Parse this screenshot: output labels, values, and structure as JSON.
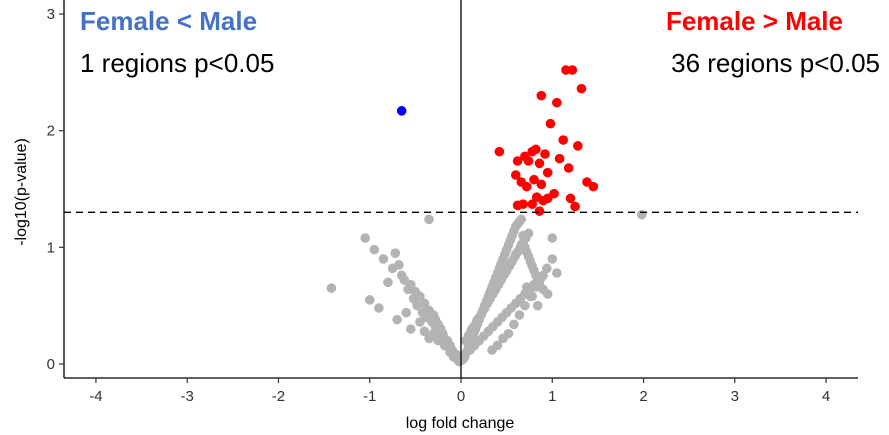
{
  "chart_data": {
    "type": "scatter",
    "title": "",
    "xlabel": "log fold change",
    "ylabel": "-log10(p-value)",
    "xlim": [
      -4.35,
      4.35
    ],
    "ylim": [
      -0.12,
      3.12
    ],
    "x_ticks": [
      -4,
      -3,
      -2,
      -1,
      0,
      1,
      2,
      3,
      4
    ],
    "y_ticks": [
      0,
      1,
      2,
      3
    ],
    "significance_threshold": 1.3,
    "grid": false,
    "colors": {
      "up": "#ff0000",
      "down": "#0000ff",
      "ns": "#b3b3b3",
      "left_title": "#4472c4",
      "right_title": "#ff0000"
    },
    "annotations": {
      "left_title": "Female < Male",
      "left_count": "1 regions p<0.05",
      "right_title": "Female > Male",
      "right_count": "36 regions p<0.05"
    },
    "series": [
      {
        "group": "down",
        "x": [
          -0.65
        ],
        "y": [
          2.17
        ]
      },
      {
        "group": "up",
        "x": [
          1.15,
          1.22,
          1.32,
          0.88,
          1.05,
          0.98,
          1.28,
          1.12,
          0.42,
          0.62,
          0.7,
          0.74,
          0.78,
          0.82,
          0.86,
          0.92,
          0.95,
          1.08,
          1.18,
          0.6,
          0.66,
          0.72,
          0.8,
          0.88,
          0.95,
          1.02,
          1.38,
          1.45,
          1.2,
          0.83,
          0.78,
          0.68,
          1.25,
          0.9,
          0.62,
          0.86
        ],
        "y": [
          2.52,
          2.52,
          2.36,
          2.3,
          2.24,
          2.06,
          1.87,
          1.92,
          1.82,
          1.74,
          1.78,
          1.74,
          1.82,
          1.84,
          1.72,
          1.8,
          1.64,
          1.76,
          1.68,
          1.62,
          1.56,
          1.52,
          1.58,
          1.54,
          1.42,
          1.46,
          1.56,
          1.52,
          1.42,
          1.43,
          1.37,
          1.37,
          1.35,
          1.4,
          1.36,
          1.31
        ]
      },
      {
        "group": "ns",
        "x": [
          1.98,
          -0.35,
          -1.42,
          -1.05,
          -0.95,
          -0.85,
          -0.75,
          -0.65,
          -0.55,
          -0.5,
          -0.45,
          -0.4,
          -0.35,
          -0.3,
          -0.28,
          -0.25,
          -0.22,
          -0.2,
          -0.18,
          -0.15,
          -0.12,
          -0.1,
          -0.08,
          -0.05,
          -0.03,
          0,
          -0.72,
          -0.68,
          -0.62,
          -0.58,
          -0.52,
          -0.48,
          -0.42,
          -0.38,
          -0.32,
          -0.28,
          -0.24,
          -0.2,
          -0.16,
          -0.14,
          -0.1,
          -0.06,
          -1.0,
          -0.9,
          -0.8,
          -0.7,
          -0.6,
          -0.55,
          -0.45,
          -0.4,
          -0.35,
          -0.3,
          -0.25,
          -0.18,
          -0.12,
          -0.08,
          -0.04,
          -0.02,
          0.02,
          0.04,
          0.06,
          0.08,
          0.1,
          0.12,
          0.14,
          0.16,
          0.18,
          0.2,
          0.22,
          0.24,
          0.26,
          0.28,
          0.3,
          0.32,
          0.34,
          0.36,
          0.38,
          0.4,
          0.42,
          0.44,
          0.46,
          0.48,
          0.5,
          0.52,
          0.54,
          0.56,
          0.58,
          0.6,
          0.62,
          0.64,
          0.66,
          0.68,
          0.7,
          0.72,
          0.74,
          0.76,
          0.78,
          0.8,
          0.82,
          0.84,
          0.86,
          0.9,
          0.95,
          1.0,
          1.05,
          0.1,
          0.15,
          0.2,
          0.25,
          0.3,
          0.35,
          0.4,
          0.45,
          0.5,
          0.55,
          0.6,
          0.65,
          0.7,
          0.75,
          0.8,
          0.85,
          0.9,
          0.12,
          0.18,
          0.24,
          0.3,
          0.36,
          0.42,
          0.48,
          0.54,
          0.6,
          0.66,
          0.72,
          0.78,
          0.84,
          0.05,
          0.08,
          0.11,
          0.14,
          0.17,
          0.2,
          0.23,
          0.26,
          0.29,
          0.32,
          0.35,
          0.38,
          0.41,
          0.44,
          0.47,
          0.5,
          0.53,
          0.56,
          0.59,
          0.62,
          0.65,
          0.68,
          0.71,
          0.74,
          0.52,
          0.58,
          0.64,
          0.7,
          0.76,
          0.82,
          0.88,
          0.94,
          1.0,
          0.4,
          0.46,
          0.34
        ],
        "y": [
          1.28,
          1.24,
          0.65,
          1.08,
          0.98,
          0.9,
          0.82,
          0.76,
          0.68,
          0.62,
          0.58,
          0.52,
          0.46,
          0.42,
          0.38,
          0.34,
          0.3,
          0.26,
          0.22,
          0.2,
          0.16,
          0.12,
          0.1,
          0.08,
          0.05,
          0.03,
          0.95,
          0.85,
          0.72,
          0.64,
          0.56,
          0.5,
          0.44,
          0.4,
          0.36,
          0.32,
          0.28,
          0.24,
          0.18,
          0.14,
          0.12,
          0.08,
          0.55,
          0.48,
          0.7,
          0.38,
          0.44,
          0.3,
          0.36,
          0.28,
          0.22,
          0.26,
          0.2,
          0.16,
          0.1,
          0.06,
          0.04,
          0.02,
          0.04,
          0.06,
          0.1,
          0.14,
          0.18,
          0.22,
          0.26,
          0.3,
          0.34,
          0.38,
          0.42,
          0.46,
          0.5,
          0.54,
          0.58,
          0.62,
          0.66,
          0.7,
          0.74,
          0.78,
          0.82,
          0.86,
          0.9,
          0.94,
          0.98,
          1.02,
          1.06,
          1.1,
          1.14,
          1.18,
          1.2,
          1.22,
          1.24,
          1.1,
          1.0,
          0.96,
          0.92,
          0.88,
          0.84,
          0.8,
          0.76,
          0.72,
          0.68,
          0.64,
          0.6,
          1.08,
          0.78,
          0.12,
          0.16,
          0.2,
          0.24,
          0.28,
          0.32,
          0.36,
          0.4,
          0.44,
          0.48,
          0.52,
          0.56,
          0.6,
          0.64,
          0.68,
          0.72,
          0.76,
          0.3,
          0.38,
          0.46,
          0.54,
          0.62,
          0.7,
          0.78,
          0.86,
          0.94,
          1.02,
          0.66,
          0.58,
          0.5,
          0.2,
          0.24,
          0.28,
          0.32,
          0.36,
          0.4,
          0.44,
          0.48,
          0.52,
          0.56,
          0.6,
          0.64,
          0.68,
          0.72,
          0.76,
          0.8,
          0.84,
          0.88,
          0.92,
          0.96,
          1.0,
          1.04,
          1.08,
          1.12,
          0.26,
          0.34,
          0.42,
          0.5,
          0.58,
          0.66,
          0.74,
          0.82,
          0.9,
          0.16,
          0.22,
          0.12
        ]
      }
    ]
  }
}
